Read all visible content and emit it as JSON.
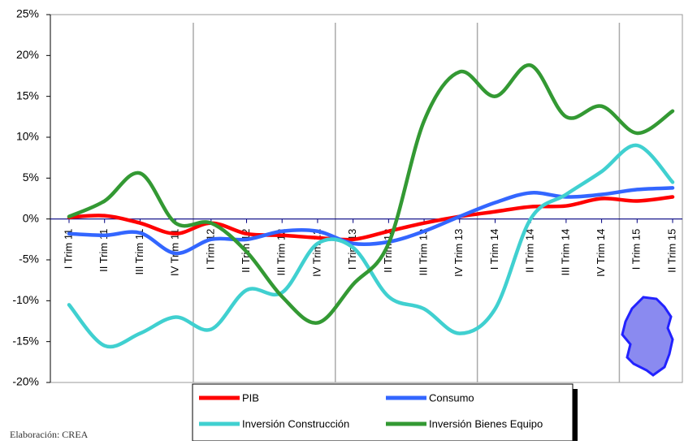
{
  "chart_data": {
    "type": "line",
    "categories": [
      "I Trim 11",
      "II Trim 11",
      "III Trim 11",
      "IV Trim 11",
      "I Trim 12",
      "II Trim 12",
      "III Trim 12",
      "IV Trim 12",
      "I Trim 13",
      "II Trim 13",
      "III Trim 13",
      "IV Trim 13",
      "I Trim 14",
      "II Trim 14",
      "III Trim 14",
      "IV Trim 14",
      "I Trim 15",
      "II Trim 15"
    ],
    "series": [
      {
        "name": "PIB",
        "color": "#ff0000",
        "values": [
          0.2,
          0.4,
          -0.5,
          -1.8,
          -0.5,
          -1.8,
          -2,
          -2.3,
          -2.5,
          -1.5,
          -0.5,
          0.3,
          0.9,
          1.5,
          1.6,
          2.5,
          2.2,
          2.7
        ]
      },
      {
        "name": "Consumo",
        "color": "#3366ff",
        "values": [
          -1.8,
          -2,
          -1.7,
          -4.2,
          -2.5,
          -2.5,
          -1.5,
          -1.5,
          -3,
          -2.8,
          -1.5,
          0.3,
          2,
          3.2,
          2.7,
          3,
          3.6,
          3.8
        ]
      },
      {
        "name": "Inversión Construcción",
        "color": "#40d0d0",
        "values": [
          -10.5,
          -15.5,
          -14,
          -12,
          -13.5,
          -8.7,
          -9,
          -3,
          -3.5,
          -9.5,
          -11,
          -14,
          -11,
          0,
          3,
          5.8,
          9,
          4.5
        ]
      },
      {
        "name": "Inversión Bienes Equipo",
        "color": "#339933",
        "values": [
          0.3,
          2.2,
          5.6,
          -0.5,
          -0.5,
          -4,
          -9.5,
          -12.7,
          -8,
          -3,
          12,
          18,
          15,
          18.8,
          12.5,
          13.8,
          10.5,
          13.2
        ]
      }
    ],
    "ylim": [
      -20,
      25
    ],
    "yticks": [
      {
        "value": -20,
        "label": "-20%"
      },
      {
        "value": -15,
        "label": "-15%"
      },
      {
        "value": -10,
        "label": "-10%"
      },
      {
        "value": -5,
        "label": "-5%"
      },
      {
        "value": 0,
        "label": "0%"
      },
      {
        "value": 5,
        "label": "5%"
      },
      {
        "value": 10,
        "label": "10%"
      },
      {
        "value": 15,
        "label": "15%"
      },
      {
        "value": 20,
        "label": "20%"
      },
      {
        "value": 25,
        "label": "25%"
      }
    ],
    "source": "Elaboración: CREA"
  }
}
